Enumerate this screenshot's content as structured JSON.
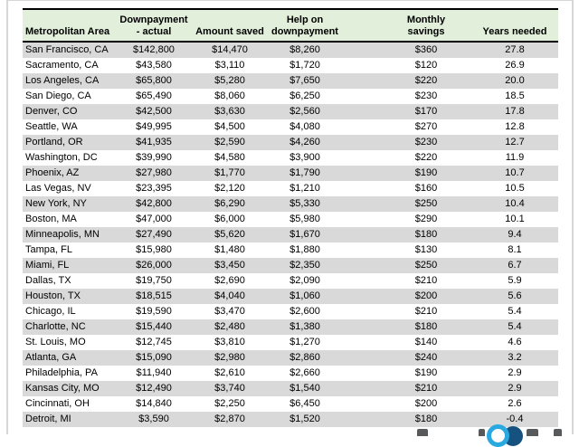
{
  "chart_data": {
    "type": "table",
    "columns": [
      "Metropolitan Area",
      "Downpayment\n- actual",
      "Amount saved",
      "Help on\ndownpayment",
      "Monthly\nsavings",
      "Years needed"
    ],
    "rows": [
      [
        "San Francisco, CA",
        "$142,800",
        "$14,470",
        "$8,260",
        "$360",
        "27.8"
      ],
      [
        "Sacramento, CA",
        "$43,580",
        "$3,110",
        "$1,720",
        "$120",
        "26.9"
      ],
      [
        "Los Angeles, CA",
        "$65,800",
        "$5,280",
        "$7,650",
        "$220",
        "20.0"
      ],
      [
        "San Diego, CA",
        "$65,490",
        "$8,060",
        "$6,250",
        "$230",
        "18.5"
      ],
      [
        "Denver, CO",
        "$42,500",
        "$3,630",
        "$2,560",
        "$170",
        "17.8"
      ],
      [
        "Seattle, WA",
        "$49,995",
        "$4,500",
        "$4,080",
        "$270",
        "12.8"
      ],
      [
        "Portland, OR",
        "$41,935",
        "$2,590",
        "$4,260",
        "$230",
        "12.7"
      ],
      [
        "Washington, DC",
        "$39,990",
        "$4,580",
        "$3,900",
        "$220",
        "11.9"
      ],
      [
        "Phoenix, AZ",
        "$27,980",
        "$1,770",
        "$1,790",
        "$190",
        "10.7"
      ],
      [
        "Las Vegas, NV",
        "$23,395",
        "$2,120",
        "$1,210",
        "$160",
        "10.5"
      ],
      [
        "New York, NY",
        "$42,800",
        "$6,290",
        "$5,330",
        "$250",
        "10.4"
      ],
      [
        "Boston, MA",
        "$47,000",
        "$6,000",
        "$5,980",
        "$290",
        "10.1"
      ],
      [
        "Minneapolis, MN",
        "$27,490",
        "$5,620",
        "$1,670",
        "$180",
        "9.4"
      ],
      [
        "Tampa, FL",
        "$15,980",
        "$1,480",
        "$1,880",
        "$130",
        "8.1"
      ],
      [
        "Miami, FL",
        "$26,000",
        "$3,450",
        "$2,350",
        "$250",
        "6.7"
      ],
      [
        "Dallas, TX",
        "$19,750",
        "$2,690",
        "$2,090",
        "$210",
        "5.9"
      ],
      [
        "Houston, TX",
        "$18,515",
        "$4,040",
        "$1,060",
        "$200",
        "5.6"
      ],
      [
        "Chicago, IL",
        "$19,590",
        "$3,470",
        "$2,600",
        "$210",
        "5.4"
      ],
      [
        "Charlotte, NC",
        "$15,440",
        "$2,480",
        "$1,380",
        "$180",
        "5.4"
      ],
      [
        "St. Louis, MO",
        "$12,745",
        "$3,810",
        "$1,270",
        "$140",
        "4.6"
      ],
      [
        "Atlanta, GA",
        "$15,090",
        "$2,980",
        "$2,860",
        "$240",
        "3.2"
      ],
      [
        "Philadelphia, PA",
        "$11,940",
        "$2,610",
        "$2,660",
        "$190",
        "2.9"
      ],
      [
        "Kansas City, MO",
        "$12,490",
        "$3,740",
        "$1,540",
        "$210",
        "2.9"
      ],
      [
        "Cincinnati, OH",
        "$14,840",
        "$2,250",
        "$6,450",
        "$200",
        "2.6"
      ],
      [
        "Detroit, MI",
        "$3,590",
        "$2,870",
        "$1,520",
        "$180",
        "-0.4"
      ]
    ],
    "layout": {
      "header_bg": "#e2efda",
      "stripe_color": "#d9d9d9",
      "grid": "off",
      "striping": "odd-rows-gray"
    }
  },
  "colors": {
    "header_bg": "#e2efda",
    "stripe": "#d9d9d9",
    "table_border": "#000000",
    "frame": "#d6d6d6",
    "logo_light_blue": "#2aa9e0",
    "logo_dark_blue": "#16527f",
    "logo_gray": "#58595b"
  }
}
